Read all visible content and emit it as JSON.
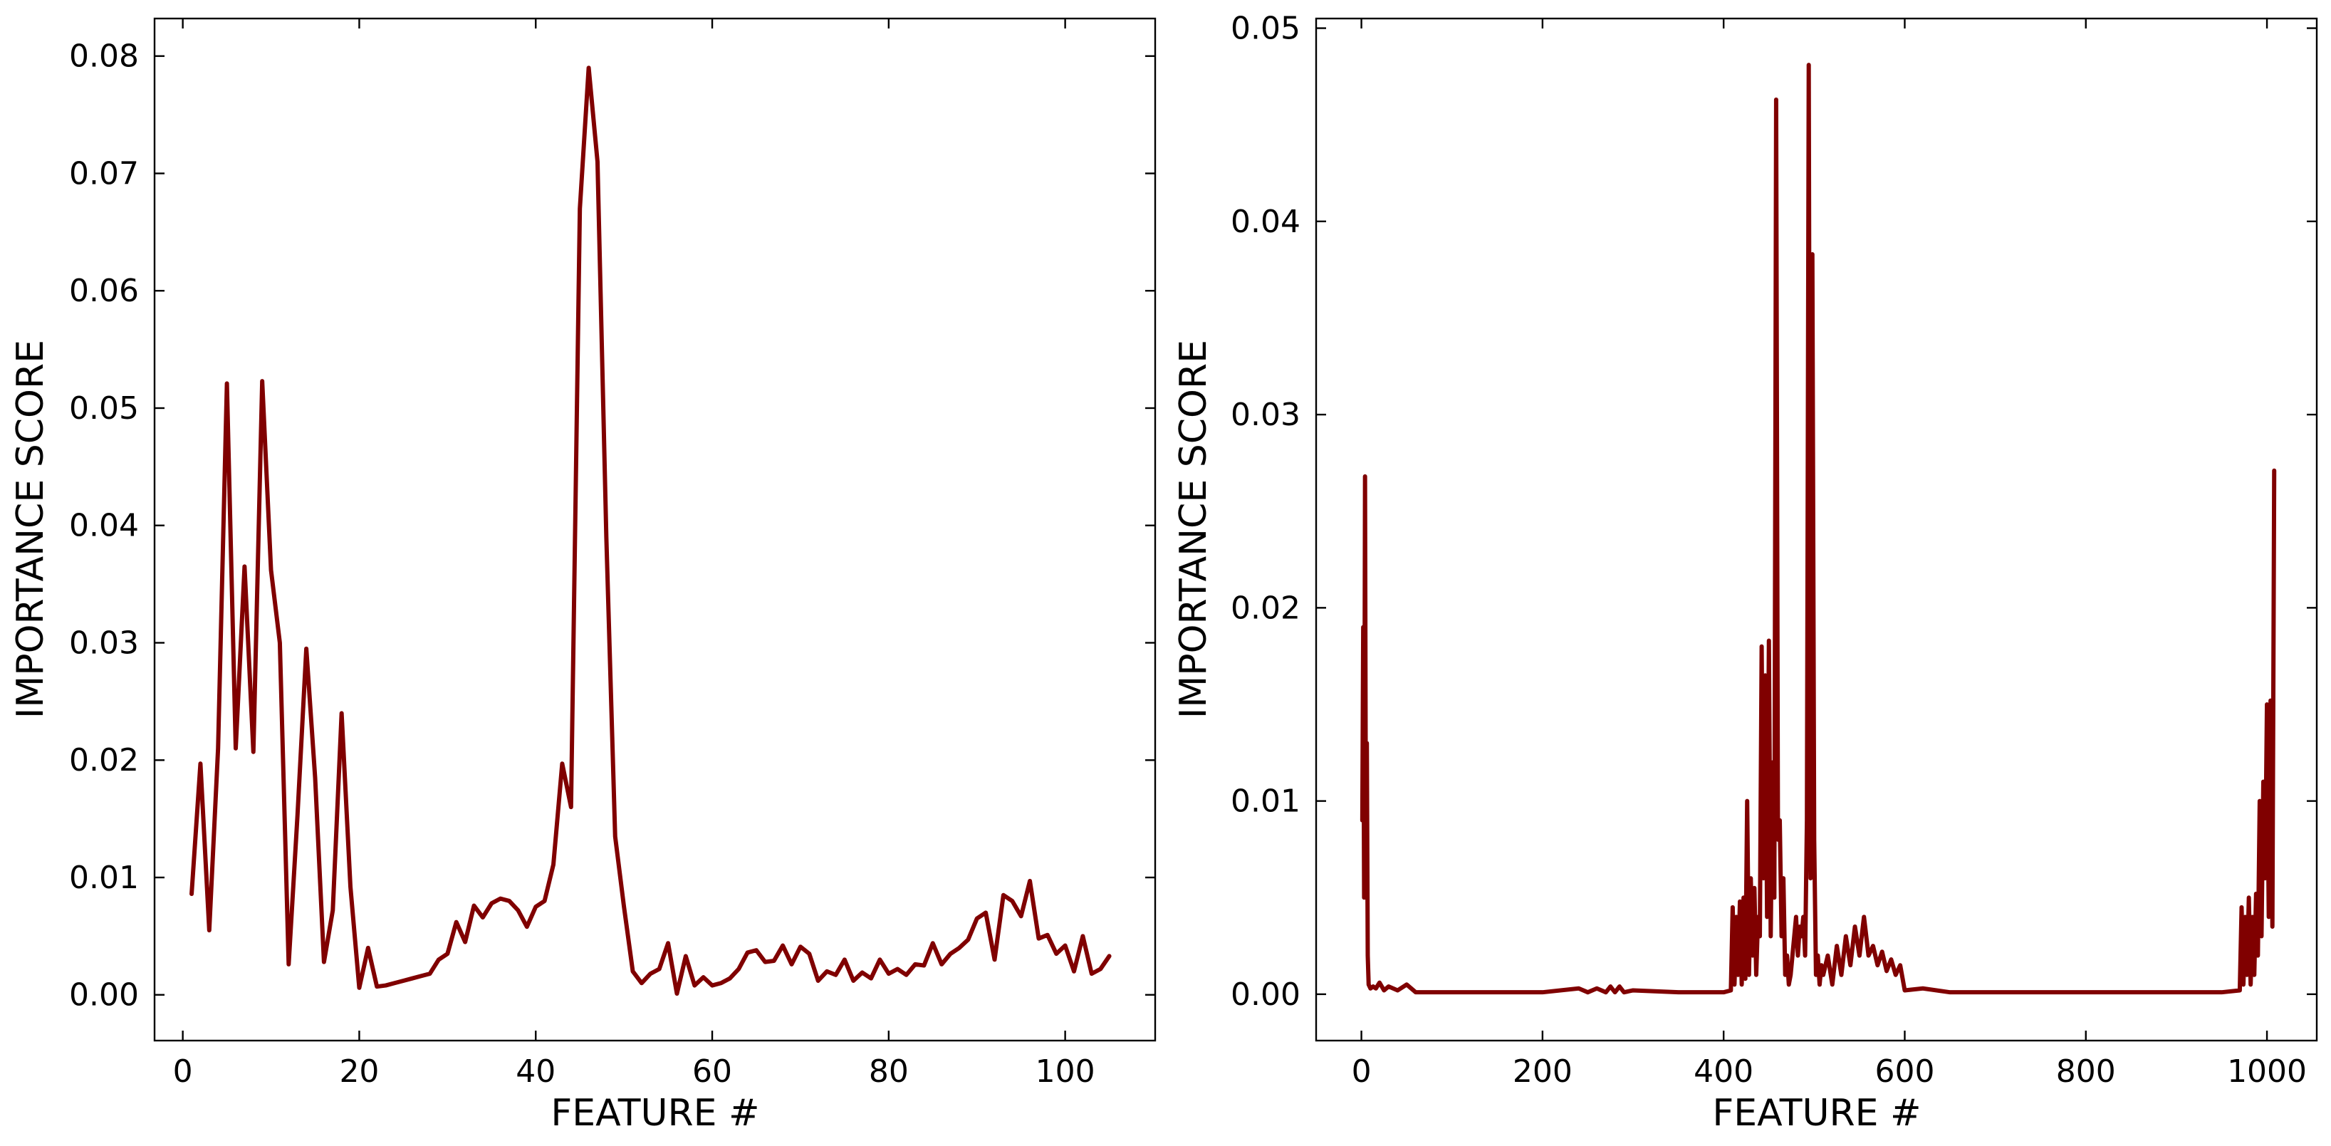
{
  "colors": {
    "line": "#800000",
    "axis": "#000000",
    "background": "#ffffff"
  },
  "chart_data": [
    {
      "type": "line",
      "xlabel": "FEATURE #",
      "ylabel": "IMPORTANCE SCORE",
      "xlim": [
        -3.2,
        110.2
      ],
      "ylim": [
        -0.0039,
        0.0832
      ],
      "grid": false,
      "x_ticks": [
        0,
        20,
        40,
        60,
        80,
        100
      ],
      "x_tick_labels": [
        "0",
        "20",
        "40",
        "60",
        "80",
        "100"
      ],
      "y_ticks": [
        0,
        0.01,
        0.02,
        0.03,
        0.04,
        0.05,
        0.06,
        0.07,
        0.08
      ],
      "y_tick_labels": [
        "0.00",
        "0.01",
        "0.02",
        "0.03",
        "0.04",
        "0.05",
        "0.06",
        "0.07",
        "0.08"
      ],
      "series": [
        {
          "x": [
            1,
            2,
            3,
            4,
            5,
            6,
            7,
            8,
            9,
            10,
            11,
            12,
            13,
            14,
            15,
            16,
            17,
            18,
            19,
            20,
            21,
            22,
            23,
            24,
            25,
            26,
            27,
            28,
            29,
            30,
            31,
            32,
            33,
            34,
            35,
            36,
            37,
            38,
            39,
            40,
            41,
            42,
            43,
            44,
            45,
            46,
            47,
            48,
            49,
            50,
            51,
            52,
            53,
            54,
            55,
            56,
            57,
            58,
            59,
            60,
            61,
            62,
            63,
            64,
            65,
            66,
            67,
            68,
            69,
            70,
            71,
            72,
            73,
            74,
            75,
            76,
            77,
            78,
            79,
            80,
            81,
            82,
            83,
            84,
            85,
            86,
            87,
            88,
            89,
            90,
            91,
            92,
            93,
            94,
            95,
            96,
            97,
            98,
            99,
            100,
            101,
            102,
            103,
            104,
            105
          ],
          "values": [
            0.0086,
            0.0197,
            0.0055,
            0.021,
            0.0521,
            0.021,
            0.0365,
            0.0207,
            0.0523,
            0.0362,
            0.03,
            0.0026,
            0.0153,
            0.0295,
            0.0185,
            0.0028,
            0.0072,
            0.024,
            0.0092,
            0.0006,
            0.004,
            0.0007,
            0.0008,
            0.001,
            0.0012,
            0.0014,
            0.0016,
            0.0018,
            0.003,
            0.0035,
            0.0062,
            0.0045,
            0.0076,
            0.0066,
            0.0078,
            0.0082,
            0.008,
            0.0072,
            0.0058,
            0.0075,
            0.008,
            0.0111,
            0.0197,
            0.016,
            0.067,
            0.079,
            0.071,
            0.039,
            0.0135,
            0.0075,
            0.002,
            0.001,
            0.0018,
            0.0022,
            0.0044,
            0.0001,
            0.0033,
            0.0008,
            0.0015,
            0.0008,
            0.001,
            0.0014,
            0.0022,
            0.0036,
            0.0038,
            0.0028,
            0.0029,
            0.0042,
            0.0026,
            0.0041,
            0.0035,
            0.0012,
            0.002,
            0.0017,
            0.003,
            0.0012,
            0.0019,
            0.0014,
            0.003,
            0.0018,
            0.0022,
            0.0017,
            0.0026,
            0.0025,
            0.0044,
            0.0026,
            0.0035,
            0.004,
            0.0047,
            0.0065,
            0.007,
            0.003,
            0.0085,
            0.008,
            0.0067,
            0.0097,
            0.0048,
            0.0051,
            0.0035,
            0.0042,
            0.002,
            0.005,
            0.0018,
            0.0022,
            0.0033
          ]
        }
      ]
    },
    {
      "type": "line",
      "xlabel": "FEATURE #",
      "ylabel": "IMPORTANCE SCORE",
      "xlim": [
        -50,
        1055
      ],
      "ylim": [
        -0.0024,
        0.0505
      ],
      "grid": false,
      "x_ticks": [
        0,
        200,
        400,
        600,
        800,
        1000
      ],
      "x_tick_labels": [
        "0",
        "200",
        "400",
        "600",
        "800",
        "1000"
      ],
      "y_ticks": [
        0,
        0.01,
        0.02,
        0.03,
        0.04,
        0.05
      ],
      "y_tick_labels": [
        "0.00",
        "0.01",
        "0.02",
        "0.03",
        "0.04",
        "0.05"
      ],
      "series": [
        {
          "x": [
            1,
            2,
            3,
            4,
            5,
            6,
            7,
            8,
            10,
            13,
            16,
            20,
            25,
            30,
            40,
            50,
            60,
            80,
            100,
            150,
            200,
            240,
            250,
            260,
            270,
            275,
            280,
            285,
            290,
            300,
            350,
            400,
            408,
            410,
            412,
            414,
            416,
            418,
            420,
            422,
            424,
            426,
            428,
            430,
            432,
            434,
            436,
            438,
            440,
            442,
            444,
            446,
            448,
            450,
            452,
            454,
            456,
            458,
            460,
            462,
            464,
            466,
            468,
            470,
            472,
            474,
            476,
            478,
            480,
            482,
            484,
            486,
            488,
            490,
            492,
            494,
            496,
            498,
            500,
            502,
            504,
            506,
            508,
            510,
            515,
            520,
            525,
            530,
            535,
            540,
            545,
            550,
            555,
            560,
            565,
            570,
            575,
            580,
            585,
            590,
            595,
            600,
            620,
            650,
            700,
            750,
            800,
            850,
            900,
            950,
            970,
            972,
            974,
            976,
            978,
            980,
            982,
            984,
            986,
            988,
            990,
            992,
            994,
            996,
            998,
            1000,
            1002,
            1004,
            1006,
            1008
          ],
          "values": [
            0.009,
            0.019,
            0.005,
            0.0268,
            0.006,
            0.013,
            0.002,
            0.0005,
            0.0003,
            0.0004,
            0.0003,
            0.0006,
            0.0002,
            0.0004,
            0.0002,
            0.0005,
            0.0001,
            0.0001,
            0.0001,
            0.0001,
            0.0001,
            0.0003,
            0.0001,
            0.0003,
            0.0001,
            0.0004,
            0.0001,
            0.0004,
            0.0001,
            0.0002,
            0.0001,
            0.0001,
            0.0002,
            0.0045,
            0.0005,
            0.004,
            0.001,
            0.0048,
            0.0005,
            0.005,
            0.0008,
            0.01,
            0.001,
            0.006,
            0.002,
            0.0055,
            0.001,
            0.004,
            0.003,
            0.018,
            0.006,
            0.0165,
            0.004,
            0.0183,
            0.003,
            0.012,
            0.005,
            0.0463,
            0.008,
            0.009,
            0.003,
            0.006,
            0.001,
            0.002,
            0.0005,
            0.001,
            0.002,
            0.003,
            0.004,
            0.002,
            0.0035,
            0.003,
            0.004,
            0.002,
            0.009,
            0.0481,
            0.006,
            0.0383,
            0.008,
            0.001,
            0.002,
            0.0005,
            0.0015,
            0.001,
            0.002,
            0.0005,
            0.0025,
            0.001,
            0.003,
            0.0015,
            0.0035,
            0.002,
            0.004,
            0.002,
            0.0025,
            0.0015,
            0.0022,
            0.0012,
            0.0018,
            0.001,
            0.0015,
            0.0002,
            0.0003,
            0.0001,
            0.0001,
            0.0001,
            0.0001,
            0.0001,
            0.0001,
            0.0001,
            0.0002,
            0.0045,
            0.0005,
            0.004,
            0.001,
            0.005,
            0.0005,
            0.004,
            0.001,
            0.0052,
            0.002,
            0.01,
            0.003,
            0.011,
            0.006,
            0.015,
            0.004,
            0.0152,
            0.0035,
            0.0271
          ]
        }
      ]
    }
  ]
}
